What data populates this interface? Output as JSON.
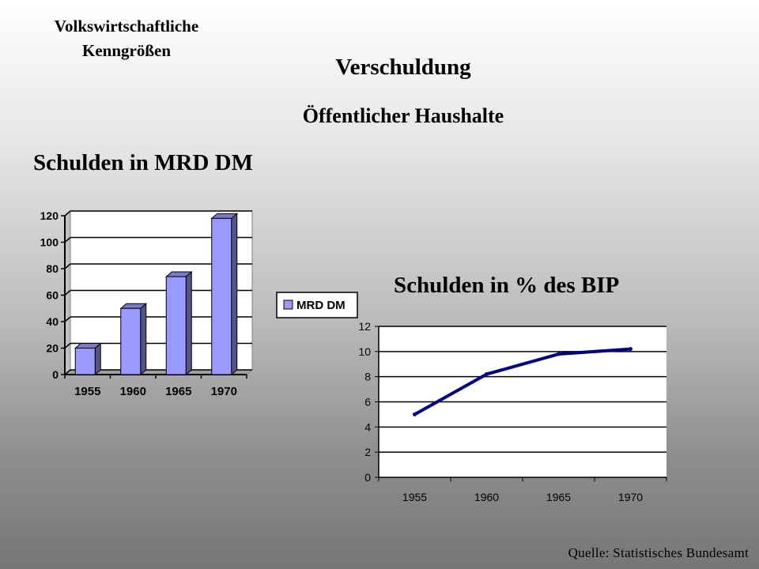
{
  "header": {
    "section_title": "Volkswirtschaftliche\nKenngrößen",
    "main_title": "Verschuldung",
    "main_subtitle": "Öffentlicher Haushalte"
  },
  "footer": {
    "source": "Quelle: Statistisches Bundesamt"
  },
  "colors": {
    "bar_fill": "#9999ff",
    "line": "#000080",
    "grid": "#000000"
  },
  "chart_data": [
    {
      "type": "bar",
      "title": "Schulden in MRD DM",
      "categories": [
        "1955",
        "1960",
        "1965",
        "1970"
      ],
      "series": [
        {
          "name": "MRD DM",
          "values": [
            20,
            50,
            74,
            118
          ]
        }
      ],
      "ylim": [
        0,
        120
      ],
      "yticks": [
        0,
        20,
        40,
        60,
        80,
        100,
        120
      ],
      "grid": true,
      "legend": "right",
      "style": "3d"
    },
    {
      "type": "line",
      "title": "Schulden in % des BIP",
      "categories": [
        "1955",
        "1960",
        "1965",
        "1970"
      ],
      "series": [
        {
          "values": [
            5,
            8.2,
            9.8,
            10.2
          ]
        }
      ],
      "ylim": [
        0,
        12
      ],
      "yticks": [
        0,
        2,
        4,
        6,
        8,
        10,
        12
      ],
      "grid": true,
      "legend": "none"
    }
  ]
}
